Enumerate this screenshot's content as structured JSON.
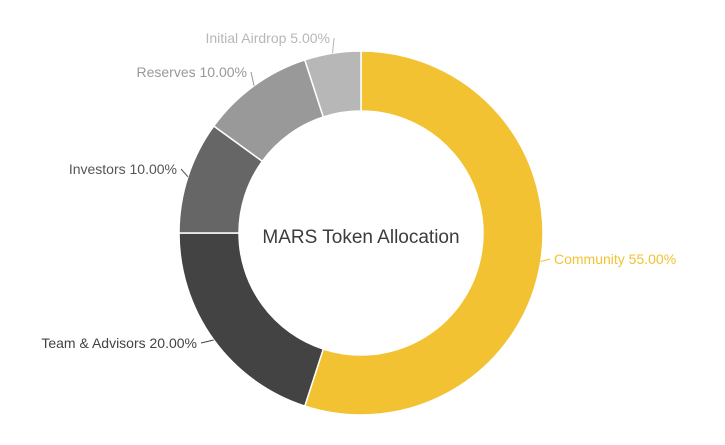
{
  "chart_data": {
    "type": "pie",
    "title": "MARS Token Allocation",
    "donut": true,
    "slices": [
      {
        "label": "Community",
        "value": 55.0,
        "display": "Community 55.00%",
        "color": "#f2c232",
        "label_color": "#f2c232"
      },
      {
        "label": "Team & Advisors",
        "value": 20.0,
        "display": "Team & Advisors 20.00%",
        "color": "#434343",
        "label_color": "#434343"
      },
      {
        "label": "Investors",
        "value": 10.0,
        "display": "Investors 10.00%",
        "color": "#666666",
        "label_color": "#555555"
      },
      {
        "label": "Reserves",
        "value": 10.0,
        "display": "Reserves 10.00%",
        "color": "#999999",
        "label_color": "#999999"
      },
      {
        "label": "Initial Airdrop",
        "value": 5.0,
        "display": "Initial Airdrop 5.00%",
        "color": "#b7b7b7",
        "label_color": "#b7b7b7"
      }
    ]
  }
}
